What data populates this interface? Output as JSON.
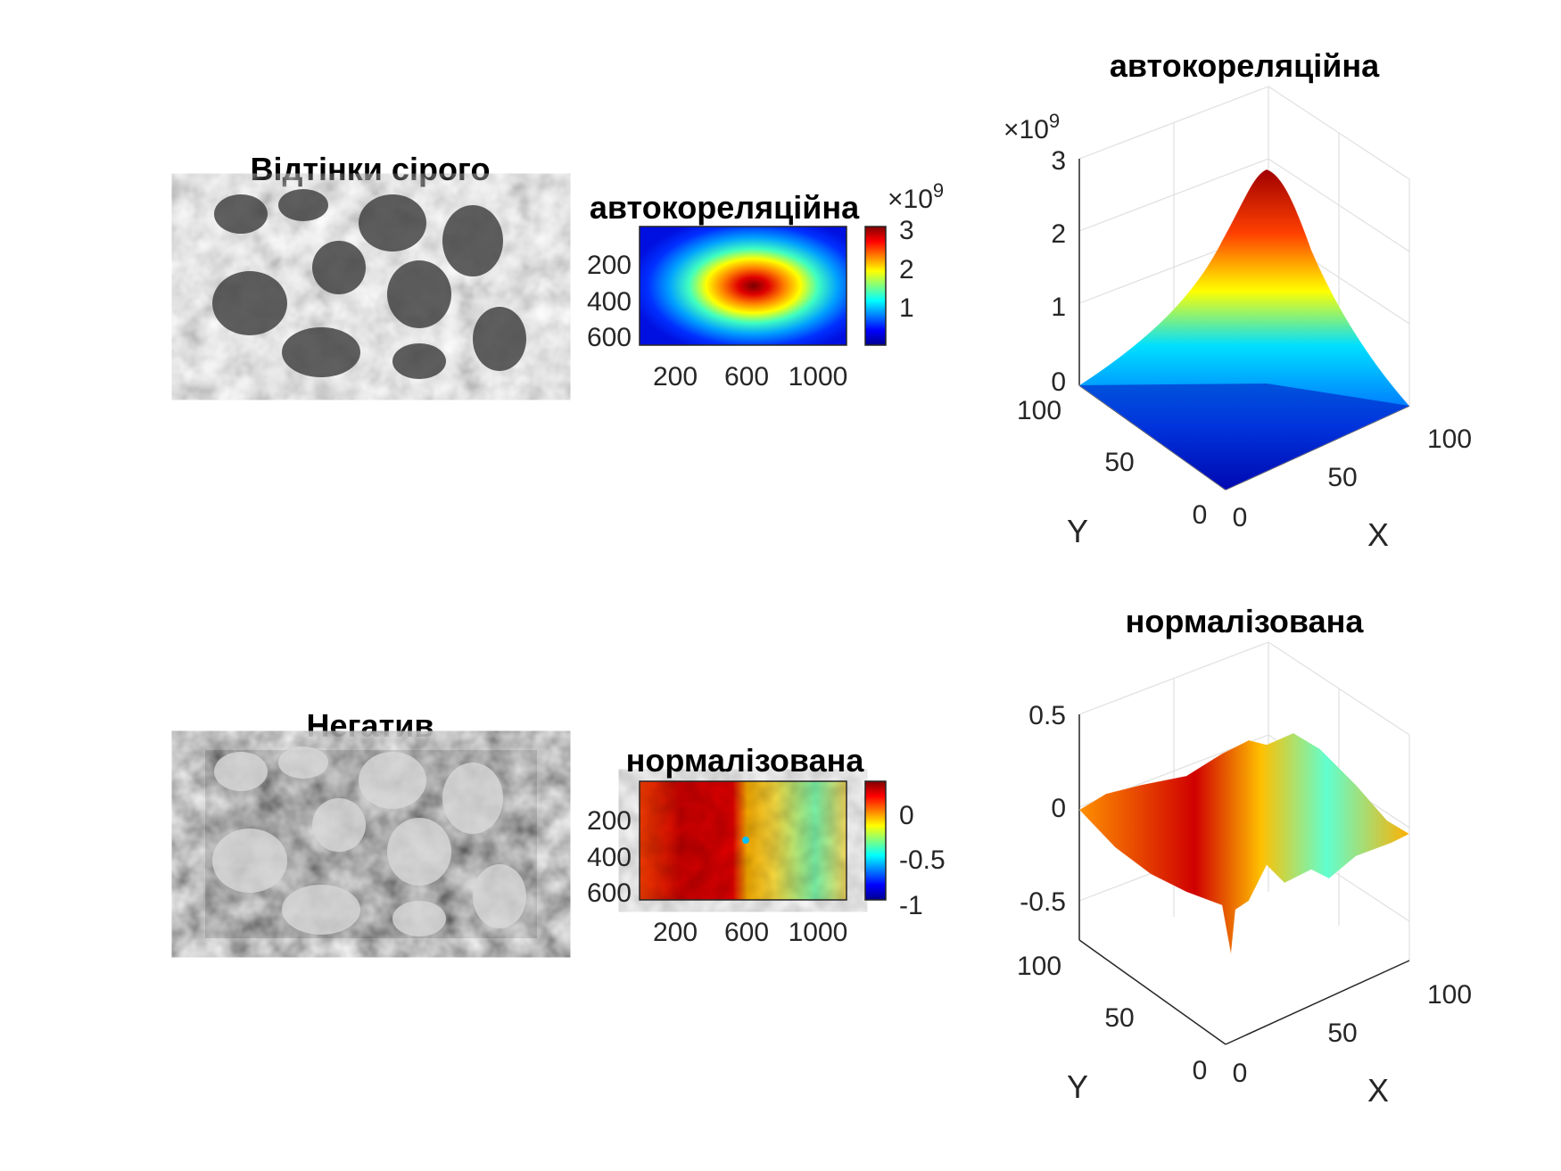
{
  "chart_data": [
    {
      "id": "gray",
      "type": "image",
      "title": "Відтінки сірого"
    },
    {
      "id": "auto2d",
      "type": "heatmap",
      "title": "автокореляційна",
      "x_ticks": [
        "200",
        "600",
        "1000"
      ],
      "y_ticks": [
        "200",
        "400",
        "600"
      ],
      "colorbar_ticks": [
        "3",
        "2",
        "1"
      ],
      "multiplier_base": "×10",
      "multiplier_exp": "9"
    },
    {
      "id": "auto3d",
      "type": "surface",
      "title": "автокореляційна",
      "z_ticks": [
        "3",
        "2",
        "1",
        "0"
      ],
      "x_ticks": [
        "0",
        "50",
        "100"
      ],
      "y_ticks": [
        "0",
        "50",
        "100"
      ],
      "xlabel": "X",
      "ylabel": "Y",
      "multiplier_base": "×10",
      "multiplier_exp": "9"
    },
    {
      "id": "neg",
      "type": "image",
      "title": "Негатив"
    },
    {
      "id": "norm2d",
      "type": "heatmap",
      "title": "нормалізована",
      "x_ticks": [
        "200",
        "600",
        "1000"
      ],
      "y_ticks": [
        "200",
        "400",
        "600"
      ],
      "colorbar_ticks": [
        "0",
        "-0.5",
        "-1"
      ]
    },
    {
      "id": "norm3d",
      "type": "surface",
      "title": "нормалізована",
      "z_ticks": [
        "0.5",
        "0",
        "-0.5"
      ],
      "x_ticks": [
        "0",
        "50",
        "100"
      ],
      "y_ticks": [
        "0",
        "50",
        "100"
      ],
      "xlabel": "X",
      "ylabel": "Y"
    }
  ],
  "colors": {
    "jet_dark_blue": "#00008f",
    "jet_blue": "#0000ff",
    "jet_cyan": "#00ffff",
    "jet_yellow": "#ffff00",
    "jet_red": "#ff0000",
    "jet_dark_red": "#800000"
  }
}
